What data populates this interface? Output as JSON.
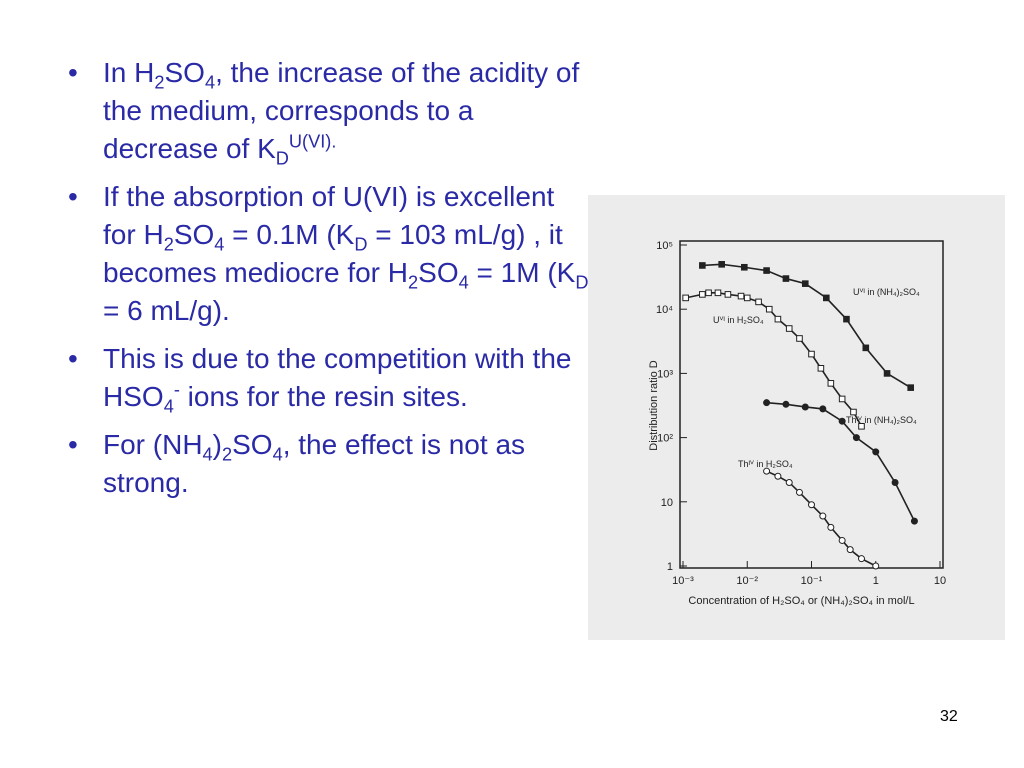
{
  "slide": {
    "bullets": [
      {
        "runs": [
          {
            "text": "In H"
          },
          {
            "sub": "2"
          },
          {
            "text": "SO"
          },
          {
            "sub": "4"
          },
          {
            "text": ", the increase of the acidity of the medium, corresponds to a decrease of K"
          },
          {
            "sub": "D"
          },
          {
            "sup": "U(VI)."
          }
        ]
      },
      {
        "runs": [
          {
            "text": "If the absorption of U(VI) is excellent for H"
          },
          {
            "sub": "2"
          },
          {
            "text": "SO"
          },
          {
            "sub": "4"
          },
          {
            "text": " = 0.1M (K"
          },
          {
            "sub": "D"
          },
          {
            "text": " = 103 mL/g) , it becomes mediocre for H"
          },
          {
            "sub": "2"
          },
          {
            "text": "SO"
          },
          {
            "sub": "4"
          },
          {
            "text": " = 1M (K"
          },
          {
            "sub": "D"
          },
          {
            "text": "  = 6 mL/g)."
          }
        ]
      },
      {
        "runs": [
          {
            "text": "This is due to the competition with the HSO"
          },
          {
            "sub": "4"
          },
          {
            "sup": "-"
          },
          {
            "text": " ions for the resin sites."
          }
        ]
      },
      {
        "runs": [
          {
            "text": "For (NH"
          },
          {
            "sub": "4"
          },
          {
            "text": ")"
          },
          {
            "sub": "2"
          },
          {
            "text": "SO"
          },
          {
            "sub": "4"
          },
          {
            "text": ", the effect is not as strong."
          }
        ]
      }
    ],
    "page_number": "32"
  },
  "chart_data": {
    "type": "line",
    "x_label": "Concentration of H₂SO₄ or (NH₄)₂SO₄ in mol/L",
    "y_label": "Distribution ratio D",
    "xscale": "log",
    "yscale": "log",
    "xlim": [
      0.001,
      10
    ],
    "ylim": [
      1,
      100000
    ],
    "xticks": [
      {
        "value": 0.001,
        "label": "10⁻³"
      },
      {
        "value": 0.01,
        "label": "10⁻²"
      },
      {
        "value": 0.1,
        "label": "10⁻¹"
      },
      1,
      10
    ],
    "yticks": [
      1,
      10,
      {
        "value": 100,
        "label": "10²"
      },
      {
        "value": 1000,
        "label": "10³"
      },
      {
        "value": 10000,
        "label": "10⁴"
      },
      {
        "value": 100000,
        "label": "10⁵"
      }
    ],
    "series": [
      {
        "name": "Uⱽᴵ in (NH₄)₂SO₄",
        "color": "#222222",
        "marker": "filled-square",
        "x": [
          0.002,
          0.004,
          0.009,
          0.02,
          0.04,
          0.08,
          0.17,
          0.35,
          0.7,
          1.5,
          3.5
        ],
        "values": [
          48000,
          50000,
          45000,
          40000,
          30000,
          25000,
          15000,
          7000,
          2500,
          1000,
          600
        ]
      },
      {
        "name": "Uⱽᴵ in H₂SO₄",
        "color": "#222222",
        "marker": "open-square",
        "x": [
          0.0011,
          0.002,
          0.0025,
          0.0035,
          0.005,
          0.008,
          0.01,
          0.015,
          0.022,
          0.03,
          0.045,
          0.065,
          0.1,
          0.14,
          0.2,
          0.3,
          0.45,
          0.6
        ],
        "values": [
          15000,
          17000,
          18000,
          18000,
          17000,
          16000,
          15000,
          13000,
          10000,
          7000,
          5000,
          3500,
          2000,
          1200,
          700,
          400,
          250,
          150
        ]
      },
      {
        "name": "Thᴵⱽ in (NH₄)₂SO₄",
        "color": "#222222",
        "marker": "filled-circle",
        "x": [
          0.02,
          0.04,
          0.08,
          0.15,
          0.3,
          0.5,
          1,
          2,
          4
        ],
        "values": [
          350,
          330,
          300,
          280,
          180,
          100,
          60,
          20,
          5
        ]
      },
      {
        "name": "Thᴵⱽ in H₂SO₄",
        "color": "#222222",
        "marker": "open-circle",
        "x": [
          0.02,
          0.03,
          0.045,
          0.065,
          0.1,
          0.15,
          0.2,
          0.3,
          0.4,
          0.6,
          1
        ],
        "values": [
          30,
          25,
          20,
          14,
          9,
          6,
          4,
          2.5,
          1.8,
          1.3,
          1
        ]
      }
    ]
  }
}
